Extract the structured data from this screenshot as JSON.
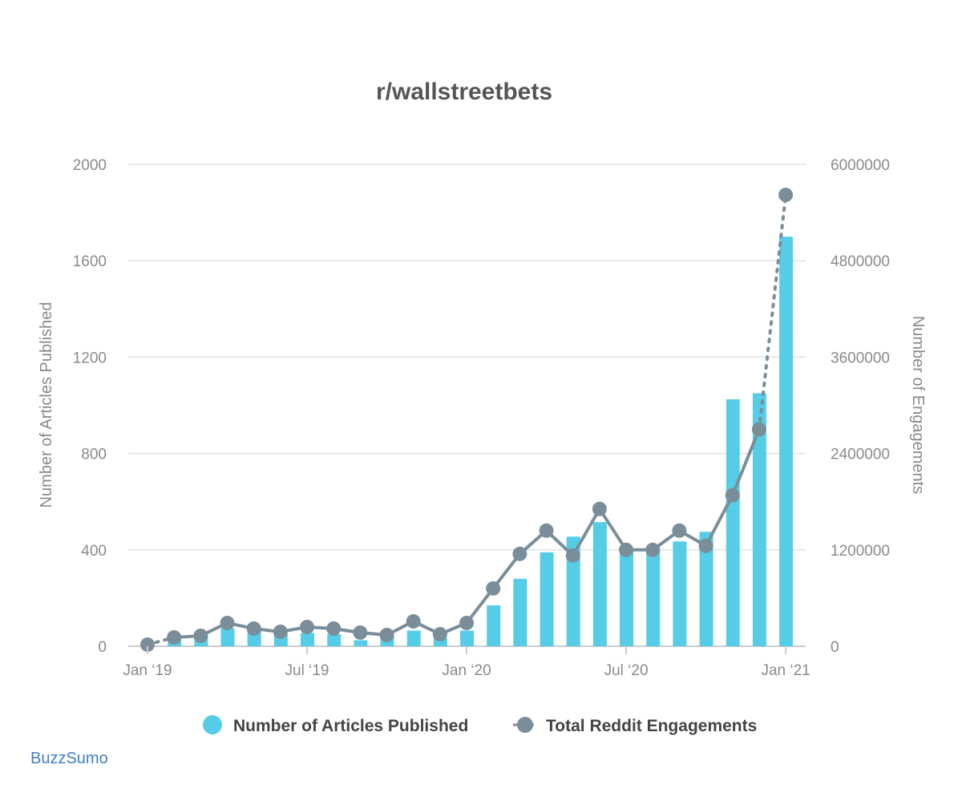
{
  "chart_data": {
    "type": "bar",
    "title": "r/wallstreetbets",
    "y_left_label": "Number of Articles Published",
    "y_right_label": "Number of Engagements",
    "y_left_range": [
      0,
      2000
    ],
    "y_left_ticks": [
      "0",
      "400",
      "800",
      "1200",
      "1600",
      "2000"
    ],
    "y_right_range": [
      0,
      6000000
    ],
    "y_right_ticks": [
      "0",
      "1200000",
      "2400000",
      "3600000",
      "4800000",
      "6000000"
    ],
    "x_tick_labels": [
      "Jan ‘19",
      "Jul ‘19",
      "Jan ‘20",
      "Jul ‘20",
      "Jan ‘21"
    ],
    "months": [
      "2019-01",
      "2019-02",
      "2019-03",
      "2019-04",
      "2019-05",
      "2019-06",
      "2019-07",
      "2019-08",
      "2019-09",
      "2019-10",
      "2019-11",
      "2019-12",
      "2020-01",
      "2020-02",
      "2020-03",
      "2020-04",
      "2020-05",
      "2020-06",
      "2020-07",
      "2020-08",
      "2020-09",
      "2020-10",
      "2020-11",
      "2020-12",
      "2021-01"
    ],
    "grid": true,
    "legend_position": "bottom",
    "series": [
      {
        "name": "Number of Articles Published",
        "kind": "bar",
        "axis": "left",
        "color": "#56cde7",
        "values": [
          3,
          25,
          45,
          75,
          65,
          50,
          55,
          50,
          25,
          45,
          65,
          35,
          65,
          170,
          280,
          390,
          455,
          515,
          405,
          405,
          435,
          475,
          1025,
          1050,
          1700
        ]
      },
      {
        "name": "Total Reddit Engagements",
        "kind": "line",
        "axis": "right",
        "color": "#7a8e99",
        "values": [
          20000,
          110000,
          130000,
          290000,
          220000,
          180000,
          240000,
          220000,
          170000,
          140000,
          310000,
          150000,
          290000,
          720000,
          1150000,
          1440000,
          1130000,
          1710000,
          1200000,
          1200000,
          1440000,
          1250000,
          1880000,
          2700000,
          5620000
        ]
      }
    ]
  },
  "branding": {
    "text": "BuzzSumo"
  }
}
